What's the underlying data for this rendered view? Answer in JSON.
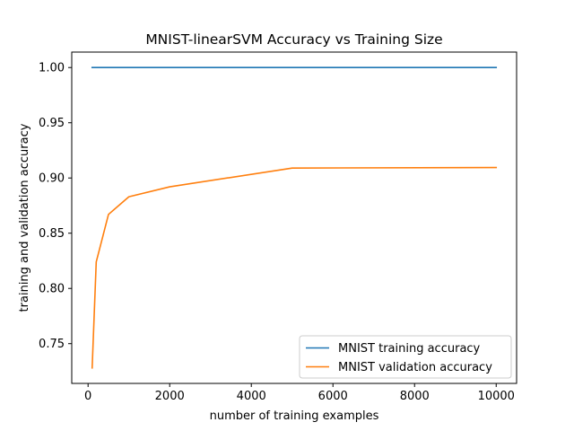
{
  "chart_data": {
    "type": "line",
    "title": "MNIST-linearSVM Accuracy vs Training Size",
    "xlabel": "number of training examples",
    "ylabel": "training and validation accuracy",
    "xlim": [
      -400,
      10500
    ],
    "ylim": [
      0.714,
      1.014
    ],
    "xticks": [
      0,
      2000,
      4000,
      6000,
      8000,
      10000
    ],
    "xtick_labels": [
      "0",
      "2000",
      "4000",
      "6000",
      "8000",
      "10000"
    ],
    "yticks": [
      0.75,
      0.8,
      0.85,
      0.9,
      0.95,
      1.0
    ],
    "ytick_labels": [
      "0.75",
      "0.80",
      "0.85",
      "0.90",
      "0.95",
      "1.00"
    ],
    "grid": false,
    "legend_position": "bottom-right",
    "series": [
      {
        "name": "MNIST training accuracy",
        "color": "#1f77b4",
        "x": [
          100,
          200,
          500,
          1000,
          2000,
          5000,
          10000
        ],
        "y": [
          1.0,
          1.0,
          1.0,
          1.0,
          1.0,
          1.0,
          1.0
        ]
      },
      {
        "name": "MNIST validation accuracy",
        "color": "#ff7f0e",
        "x": [
          100,
          200,
          500,
          1000,
          2000,
          5000,
          10000
        ],
        "y": [
          0.728,
          0.824,
          0.867,
          0.883,
          0.892,
          0.909,
          0.9095
        ]
      }
    ]
  }
}
